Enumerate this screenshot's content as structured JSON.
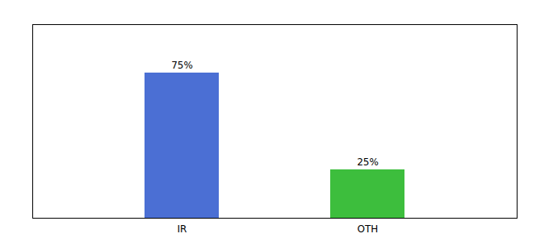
{
  "chart_data": {
    "type": "bar",
    "categories": [
      "IR",
      "OTH"
    ],
    "values": [
      75,
      25
    ],
    "value_labels": [
      "75%",
      "25%"
    ],
    "colors": [
      "#4b6fd4",
      "#3dbe3d"
    ],
    "ylim": [
      0,
      100
    ],
    "yticks": [],
    "data_labels": true,
    "tick_labels": "x",
    "grid": false
  }
}
